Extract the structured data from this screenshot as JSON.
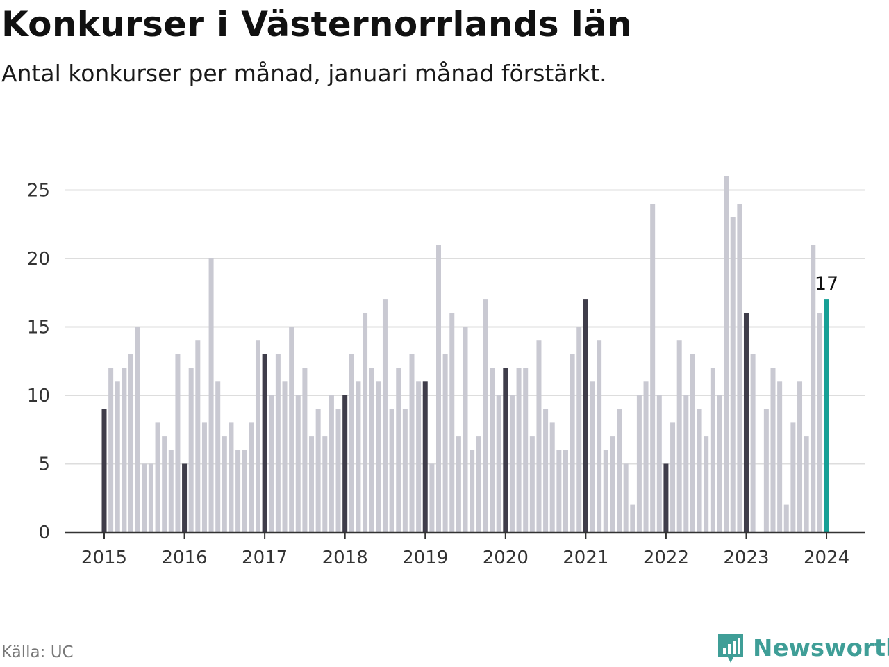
{
  "title": "Konkurser i Västernorrlands län",
  "subtitle": "Antal konkurser per månad, januari månad förstärkt.",
  "source": "Källa: UC",
  "brand": "Newsworthy",
  "colors": {
    "bar_default": "#c9c9d2",
    "bar_january": "#3f3d4a",
    "bar_latest": "#16a096",
    "grid": "#dddddd",
    "axis": "#333333",
    "brand": "#3f9e97"
  },
  "chart_data": {
    "type": "bar",
    "start": "2015-01",
    "ylim": [
      0,
      27
    ],
    "yticks": [
      0,
      5,
      10,
      15,
      20,
      25
    ],
    "xtick_labels": [
      "2015",
      "2016",
      "2017",
      "2018",
      "2019",
      "2020",
      "2021",
      "2022",
      "2023",
      "2024"
    ],
    "highlight": "January bars emphasized; latest month highlighted",
    "latest_label": "17",
    "values": [
      9,
      12,
      11,
      12,
      13,
      15,
      5,
      5,
      8,
      7,
      6,
      13,
      5,
      12,
      14,
      8,
      20,
      11,
      7,
      8,
      6,
      6,
      8,
      14,
      13,
      10,
      13,
      11,
      15,
      10,
      12,
      7,
      9,
      7,
      10,
      9,
      10,
      13,
      11,
      16,
      12,
      11,
      17,
      9,
      12,
      9,
      13,
      11,
      11,
      5,
      21,
      13,
      16,
      7,
      15,
      6,
      7,
      17,
      12,
      10,
      12,
      10,
      12,
      12,
      7,
      14,
      9,
      8,
      6,
      6,
      13,
      15,
      17,
      11,
      14,
      6,
      7,
      9,
      5,
      2,
      10,
      11,
      24,
      10,
      5,
      8,
      14,
      10,
      13,
      9,
      7,
      12,
      10,
      26,
      23,
      24,
      16,
      13,
      0,
      9,
      12,
      11,
      2,
      8,
      11,
      7,
      21,
      16,
      17
    ]
  }
}
